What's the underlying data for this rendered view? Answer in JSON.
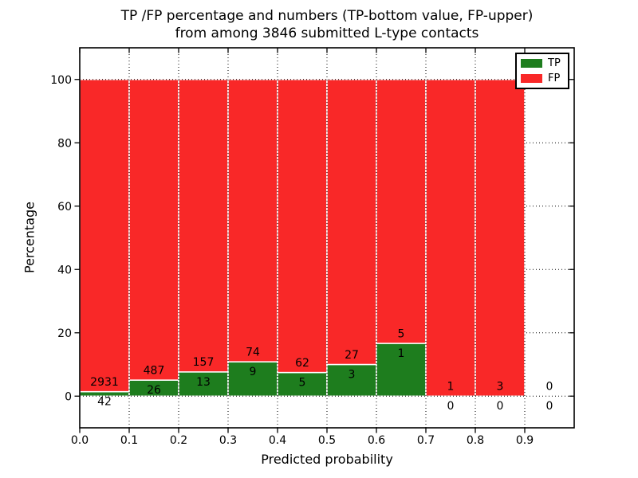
{
  "title": {
    "line1": "TP /FP percentage and numbers (TP-bottom value, FP-upper)",
    "line2": "from among 3846 submitted L-type contacts"
  },
  "axes": {
    "xlabel": "Predicted probability",
    "ylabel": "Percentage"
  },
  "legend": {
    "items": [
      {
        "label": "TP",
        "color": "#1e7d1e"
      },
      {
        "label": "FP",
        "color": "#f92828"
      }
    ]
  },
  "colors": {
    "tp": "#1e7d1e",
    "fp": "#f92828",
    "bar_edge": "#ffffff",
    "grid": "#000000"
  },
  "chart_data": {
    "type": "bar",
    "stacked": true,
    "title": "TP /FP percentage and numbers (TP-bottom value, FP-upper) from among 3846 submitted L-type contacts",
    "xlabel": "Predicted probability",
    "ylabel": "Percentage",
    "xlim": [
      0,
      1.0
    ],
    "ylim": [
      -10,
      110
    ],
    "xticks": [
      "0.0",
      "0.1",
      "0.2",
      "0.3",
      "0.4",
      "0.5",
      "0.6",
      "0.7",
      "0.8",
      "0.9"
    ],
    "yticks": [
      0,
      20,
      40,
      60,
      80,
      100
    ],
    "grid": "dotted",
    "legend_position": "upper right",
    "total_submitted": 3846,
    "bins": [
      {
        "range": [
          0.0,
          0.1
        ],
        "tp": 42,
        "fp": 2931,
        "tp_percent": 1.41
      },
      {
        "range": [
          0.1,
          0.2
        ],
        "tp": 26,
        "fp": 487,
        "tp_percent": 5.07
      },
      {
        "range": [
          0.2,
          0.3
        ],
        "tp": 13,
        "fp": 157,
        "tp_percent": 7.65
      },
      {
        "range": [
          0.3,
          0.4
        ],
        "tp": 9,
        "fp": 74,
        "tp_percent": 10.84
      },
      {
        "range": [
          0.4,
          0.5
        ],
        "tp": 5,
        "fp": 62,
        "tp_percent": 7.46
      },
      {
        "range": [
          0.5,
          0.6
        ],
        "tp": 3,
        "fp": 27,
        "tp_percent": 10.0
      },
      {
        "range": [
          0.6,
          0.7
        ],
        "tp": 1,
        "fp": 5,
        "tp_percent": 16.67
      },
      {
        "range": [
          0.7,
          0.8
        ],
        "tp": 0,
        "fp": 1,
        "tp_percent": 0.0
      },
      {
        "range": [
          0.8,
          0.9
        ],
        "tp": 0,
        "fp": 3,
        "tp_percent": 0.0
      },
      {
        "range": [
          0.9,
          1.0
        ],
        "tp": 0,
        "fp": 0,
        "tp_percent": null
      }
    ]
  }
}
